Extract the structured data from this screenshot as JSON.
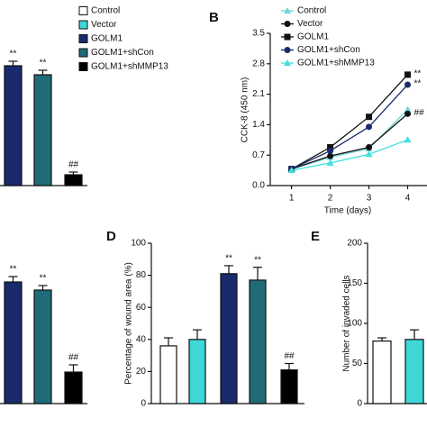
{
  "chart_data": [
    {
      "type": "bar",
      "legend": [
        {
          "name": "Control",
          "color": "#ffffff"
        },
        {
          "name": "Vector",
          "color": "#3fd6d6"
        },
        {
          "name": "GOLM1",
          "color": "#1a2a6c"
        },
        {
          "name": "GOLM1+shCon",
          "color": "#1f6b78"
        },
        {
          "name": "GOLM1+shMMP13",
          "color": "#000000"
        }
      ],
      "colors": [
        "#1a2a6c",
        "#1f6b78",
        "#000000"
      ],
      "values": [
        133,
        123,
        12
      ],
      "errors": [
        5,
        5,
        3
      ],
      "annotations": [
        {
          "index": 0,
          "text": "**"
        },
        {
          "index": 1,
          "text": "**"
        },
        {
          "index": 2,
          "text": "##"
        }
      ]
    },
    {
      "type": "line",
      "label": "B",
      "xlabel": "Time (days)",
      "ylabel": "CCK-8 (450 nm)",
      "x": [
        1,
        2,
        3,
        4
      ],
      "xlim": [
        0.45,
        4.5
      ],
      "xticks": [
        1,
        2,
        3,
        4
      ],
      "ylim": [
        0,
        3.5
      ],
      "yticks": [
        {
          "value": 0,
          "label": "0.0"
        },
        0.7,
        1.4,
        2.1,
        2.8,
        3.5
      ],
      "series": [
        {
          "name": "Control",
          "color": "#6fd6d6",
          "marker": "triangle",
          "values": [
            0.38,
            0.65,
            0.85,
            1.75
          ]
        },
        {
          "name": "Vector",
          "color": "#111111",
          "marker": "circle",
          "values": [
            0.38,
            0.68,
            0.88,
            1.65
          ],
          "annotation": "##"
        },
        {
          "name": "GOLM1",
          "color": "#111111",
          "marker": "square",
          "values": [
            0.38,
            0.88,
            1.58,
            2.55
          ],
          "annotation": "**"
        },
        {
          "name": "GOLM1+shCon",
          "color": "#1a2a6c",
          "marker": "circle",
          "values": [
            0.38,
            0.8,
            1.35,
            2.32
          ],
          "annotation": "**"
        },
        {
          "name": "GOLM1+shMMP13",
          "color": "#3fe0e0",
          "marker": "triangle",
          "values": [
            0.35,
            0.52,
            0.72,
            1.05
          ]
        }
      ]
    },
    {
      "type": "bar",
      "colors": [
        "#1a2a6c",
        "#1f6b78",
        "#000000"
      ],
      "values": [
        135,
        126,
        35
      ],
      "errors": [
        6,
        5,
        8
      ],
      "annotations": [
        {
          "index": 0,
          "text": "**"
        },
        {
          "index": 1,
          "text": "**"
        },
        {
          "index": 2,
          "text": "##"
        }
      ]
    },
    {
      "type": "bar",
      "label": "D",
      "ylabel": "Percentage of wound area (%)",
      "ylim": [
        0,
        100
      ],
      "yticks": [
        0,
        20,
        40,
        60,
        80,
        100
      ],
      "colors": [
        "#ffffff",
        "#3fd6d6",
        "#1a2a6c",
        "#1f6b78",
        "#000000"
      ],
      "values": [
        36,
        40,
        81,
        77,
        21
      ],
      "errors": [
        5,
        6,
        5,
        8,
        4
      ],
      "annotations": [
        {
          "index": 2,
          "text": "**"
        },
        {
          "index": 3,
          "text": "**"
        },
        {
          "index": 4,
          "text": "##"
        }
      ]
    },
    {
      "type": "bar",
      "label": "E",
      "ylabel": "Number of invaded cells",
      "ylim": [
        0,
        200
      ],
      "yticks": [
        0,
        50,
        100,
        150,
        200
      ],
      "colors": [
        "#ffffff",
        "#3fd6d6"
      ],
      "values": [
        78,
        80
      ],
      "errors": [
        4,
        12
      ]
    }
  ]
}
